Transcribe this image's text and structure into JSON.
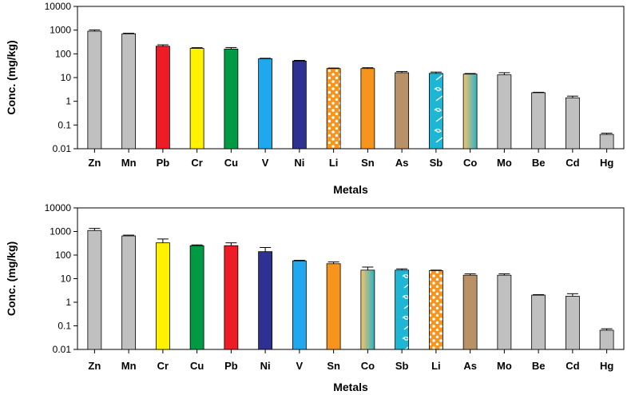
{
  "colors": {
    "gray": "#c0c0c0",
    "red": "#ee1c25",
    "yellow": "#fff200",
    "green": "#009a44",
    "lightblue": "#1fa8ee",
    "navy": "#2e3192",
    "orange": "#f7941d",
    "tan": "#b89167",
    "cyan": "#1fb6d6",
    "gradient_start": "#f7c46c",
    "gradient_end": "#2db2c4"
  },
  "chart_data": [
    {
      "type": "bar",
      "ylabel": "Conc. (mg/kg)",
      "xlabel": "Metals",
      "yscale": "log",
      "ylim": [
        0.01,
        10000
      ],
      "yticks": [
        "0.01",
        "0.1",
        "1",
        "10",
        "100",
        "1000",
        "10000"
      ],
      "categories": [
        "Zn",
        "Mn",
        "Pb",
        "Cr",
        "Cu",
        "V",
        "Ni",
        "Li",
        "Sn",
        "As",
        "Sb",
        "Co",
        "Mo",
        "Be",
        "Cd",
        "Hg"
      ],
      "values": [
        900,
        700,
        210,
        170,
        160,
        62,
        50,
        24,
        24,
        16,
        15,
        14,
        13,
        2.3,
        1.4,
        0.04
      ],
      "error": [
        120,
        40,
        30,
        12,
        25,
        3,
        3,
        1.2,
        2,
        2,
        2,
        0.8,
        3,
        0.1,
        0.25,
        0.005
      ],
      "fills": [
        "gray",
        "red",
        "yellow",
        "green",
        "lightblue",
        "navy",
        "orange-dots",
        "orange",
        "tan",
        "cyan-swirl",
        "gradient",
        "gray"
      ],
      "bar_fills": [
        "gray",
        "gray",
        "red",
        "yellow",
        "green",
        "lightblue",
        "navy",
        "orange-dots",
        "orange",
        "tan",
        "cyan-swirl",
        "gradient",
        "gray",
        "gray",
        "gray",
        "gray"
      ]
    },
    {
      "type": "bar",
      "ylabel": "Conc. (mg/kg)",
      "xlabel": "Metals",
      "yscale": "log",
      "ylim": [
        0.01,
        10000
      ],
      "yticks": [
        "0.01",
        "0.1",
        "1",
        "10",
        "100",
        "1000",
        "10000"
      ],
      "categories": [
        "Zn",
        "Mn",
        "Cr",
        "Cu",
        "Pb",
        "Ni",
        "V",
        "Sn",
        "Co",
        "Sb",
        "Li",
        "As",
        "Mo",
        "Be",
        "Cd",
        "Hg"
      ],
      "values": [
        1100,
        650,
        330,
        250,
        250,
        140,
        57,
        43,
        23,
        23,
        22,
        14,
        14,
        2.0,
        1.8,
        0.065
      ],
      "error": [
        250,
        50,
        150,
        20,
        80,
        70,
        3,
        8,
        8,
        3,
        1,
        2,
        2,
        0.1,
        0.5,
        0.01
      ],
      "bar_fills": [
        "gray",
        "gray",
        "yellow",
        "green",
        "red",
        "navy",
        "lightblue",
        "orange",
        "gradient",
        "cyan-swirl",
        "orange-dots",
        "tan",
        "gray",
        "gray",
        "gray",
        "gray"
      ]
    }
  ]
}
